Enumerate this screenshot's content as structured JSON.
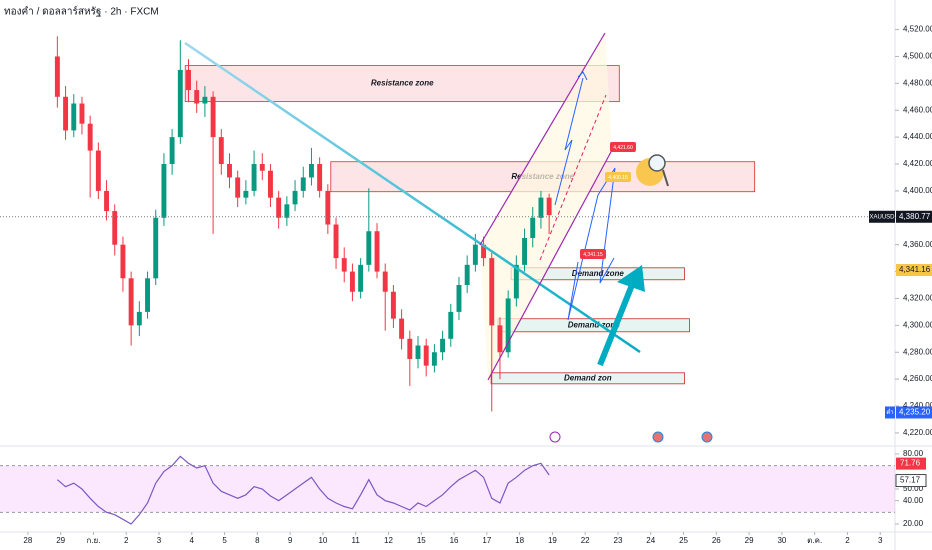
{
  "header": {
    "title": "ทองคำ / ดอลลาร์สหรัฐ · 2h · FXCM"
  },
  "chart_data": [
    {
      "type": "candlestick",
      "symbol": "XAUUSD",
      "colors": {
        "up": "#089981",
        "down": "#f23645"
      },
      "x": [
        0.9,
        1.15,
        1.4,
        1.65,
        1.9,
        2.15,
        2.4,
        2.65,
        2.9,
        3.15,
        3.4,
        3.65,
        3.9,
        4.15,
        4.4,
        4.65,
        4.9,
        5.15,
        5.4,
        5.65,
        5.9,
        6.15,
        6.4,
        6.65,
        6.9,
        7.15,
        7.4,
        7.65,
        7.9,
        8.15,
        8.4,
        8.65,
        8.9,
        9.15,
        9.4,
        9.65,
        9.9,
        10.15,
        10.4,
        10.65,
        10.9,
        11.15,
        11.4,
        11.65,
        11.9,
        12.15,
        12.4,
        12.65,
        12.9,
        13.15,
        13.4,
        13.65,
        13.9,
        14.15,
        14.4,
        14.65,
        14.9,
        15.15,
        15.4,
        15.65,
        15.9
      ],
      "open": [
        4500,
        4470,
        4445,
        4465,
        4450,
        4430,
        4400,
        4385,
        4360,
        4335,
        4300,
        4310,
        4335,
        4380,
        4420,
        4440,
        4490,
        4475,
        4465,
        4470,
        4440,
        4420,
        4410,
        4395,
        4400,
        4420,
        4415,
        4395,
        4380,
        4390,
        4400,
        4410,
        4420,
        4400,
        4375,
        4350,
        4340,
        4325,
        4345,
        4370,
        4340,
        4325,
        4305,
        4290,
        4275,
        4285,
        4270,
        4280,
        4290,
        4310,
        4330,
        4345,
        4360,
        4350,
        4300,
        4280,
        4320,
        4345,
        4365,
        4380,
        4395
      ],
      "high": [
        4515,
        4478,
        4472,
        4470,
        4456,
        4436,
        4408,
        4390,
        4366,
        4340,
        4318,
        4340,
        4386,
        4428,
        4446,
        4512,
        4498,
        4482,
        4478,
        4474,
        4446,
        4428,
        4415,
        4408,
        4430,
        4428,
        4420,
        4400,
        4396,
        4408,
        4418,
        4432,
        4425,
        4405,
        4380,
        4358,
        4346,
        4350,
        4402,
        4376,
        4346,
        4330,
        4312,
        4296,
        4292,
        4290,
        4286,
        4296,
        4316,
        4336,
        4352,
        4368,
        4366,
        4354,
        4306,
        4326,
        4352,
        4372,
        4388,
        4400,
        4398
      ],
      "low": [
        4462,
        4438,
        4440,
        4442,
        4395,
        4394,
        4378,
        4352,
        4325,
        4285,
        4292,
        4305,
        4330,
        4374,
        4412,
        4435,
        4466,
        4458,
        4455,
        4368,
        4412,
        4402,
        4388,
        4390,
        4396,
        4408,
        4388,
        4372,
        4374,
        4385,
        4395,
        4404,
        4395,
        4368,
        4342,
        4332,
        4318,
        4320,
        4340,
        4335,
        4296,
        4298,
        4282,
        4255,
        4268,
        4262,
        4265,
        4274,
        4284,
        4304,
        4324,
        4340,
        4344,
        4236,
        4260,
        4276,
        4314,
        4340,
        4358,
        4372,
        4368
      ],
      "close": [
        4470,
        4445,
        4465,
        4450,
        4430,
        4400,
        4385,
        4360,
        4335,
        4300,
        4310,
        4335,
        4380,
        4420,
        4440,
        4490,
        4475,
        4465,
        4470,
        4440,
        4420,
        4410,
        4395,
        4400,
        4420,
        4415,
        4395,
        4380,
        4390,
        4400,
        4410,
        4420,
        4400,
        4375,
        4350,
        4340,
        4325,
        4345,
        4370,
        4340,
        4325,
        4305,
        4290,
        4275,
        4285,
        4270,
        4280,
        4290,
        4310,
        4330,
        4345,
        4360,
        4350,
        4300,
        4280,
        4320,
        4345,
        4365,
        4380,
        4395,
        4382
      ],
      "xlim": [
        -0.85,
        26.45
      ],
      "xticks": [
        {
          "value": 0,
          "label": "28"
        },
        {
          "value": 1,
          "label": "29"
        },
        {
          "value": 2,
          "label": "ก.ย."
        },
        {
          "value": 3,
          "label": "2"
        },
        {
          "value": 4,
          "label": "3"
        },
        {
          "value": 5,
          "label": "4"
        },
        {
          "value": 6,
          "label": "5"
        },
        {
          "value": 7,
          "label": "8"
        },
        {
          "value": 8,
          "label": "9"
        },
        {
          "value": 9,
          "label": "10"
        },
        {
          "value": 10,
          "label": "11"
        },
        {
          "value": 11,
          "label": "12"
        },
        {
          "value": 12,
          "label": "15"
        },
        {
          "value": 13,
          "label": "16"
        },
        {
          "value": 14,
          "label": "17"
        },
        {
          "value": 15,
          "label": "18"
        },
        {
          "value": 16,
          "label": "19"
        },
        {
          "value": 17,
          "label": "22"
        },
        {
          "value": 18,
          "label": "23"
        },
        {
          "value": 19,
          "label": "24"
        },
        {
          "value": 20,
          "label": "25"
        },
        {
          "value": 21,
          "label": "26"
        },
        {
          "value": 22,
          "label": "29"
        },
        {
          "value": 23,
          "label": "30"
        },
        {
          "value": 24,
          "label": "ต.ค."
        },
        {
          "value": 25,
          "label": "2"
        },
        {
          "value": 26,
          "label": "3"
        }
      ],
      "ylim": [
        4211,
        4542
      ],
      "yticks": [
        {
          "value": 4220,
          "label": "4,220.00"
        },
        {
          "value": 4240,
          "label": "4,240.00"
        },
        {
          "value": 4260,
          "label": "4,260.00"
        },
        {
          "value": 4280,
          "label": "4,280.00"
        },
        {
          "value": 4300,
          "label": "4,300.00"
        },
        {
          "value": 4320,
          "label": "4,320.00"
        },
        {
          "value": 4340,
          "label": "4,340.00"
        },
        {
          "value": 4360,
          "label": "4,360.00"
        },
        {
          "value": 4380,
          "label": "4,380.00"
        },
        {
          "value": 4400,
          "label": "4,400.00"
        },
        {
          "value": 4420,
          "label": "4,420.00"
        },
        {
          "value": 4440,
          "label": "4,440.00"
        },
        {
          "value": 4460,
          "label": "4,460.00"
        },
        {
          "value": 4480,
          "label": "4,480.00"
        },
        {
          "value": 4500,
          "label": "4,500.00"
        },
        {
          "value": 4520,
          "label": "4,520.00"
        }
      ],
      "price_tags": [
        {
          "value": 4380.77,
          "label": "4,380.77",
          "color": "#131722"
        },
        {
          "value": 4341.16,
          "label": "4,341.16",
          "color": "#f7c548"
        },
        {
          "value": 4235.2,
          "label": "4,235.20",
          "color": "#2962ff",
          "prefix": "ต่ำ"
        }
      ],
      "zones": [
        {
          "label": "Resistance zone",
          "x": [
            4.8,
            18.04
          ],
          "price": [
            4466.4,
            4493.2
          ],
          "kind": "resistance"
        },
        {
          "label": "Resistance zone",
          "x": [
            9.24,
            22.17
          ],
          "price": [
            4399.4,
            4421.7
          ],
          "kind": "resistance"
        },
        {
          "label": "Demand zone",
          "x": [
            14.74,
            20.03
          ],
          "price": [
            4333.9,
            4342.8
          ],
          "kind": "demand"
        },
        {
          "label": "Demand zone",
          "x": [
            14.34,
            20.18
          ],
          "price": [
            4295.2,
            4304.9
          ],
          "kind": "demand"
        },
        {
          "label": "Demand zon",
          "x": [
            14.13,
            20.03
          ],
          "price": [
            4256.5,
            4264.7
          ],
          "kind": "demand"
        }
      ],
      "callouts": [
        "4,421.60",
        "4,400.15",
        "4,341.15"
      ]
    },
    {
      "type": "line",
      "name": "RSI",
      "color": "#7e57c2",
      "x": [
        0.9,
        1.15,
        1.4,
        1.65,
        1.9,
        2.15,
        2.4,
        2.65,
        2.9,
        3.15,
        3.4,
        3.65,
        3.9,
        4.15,
        4.4,
        4.65,
        4.9,
        5.15,
        5.4,
        5.65,
        5.9,
        6.15,
        6.4,
        6.65,
        6.9,
        7.15,
        7.4,
        7.65,
        7.9,
        8.15,
        8.4,
        8.65,
        8.9,
        9.15,
        9.4,
        9.65,
        9.9,
        10.15,
        10.4,
        10.65,
        10.9,
        11.15,
        11.4,
        11.65,
        11.9,
        12.15,
        12.4,
        12.65,
        12.9,
        13.15,
        13.4,
        13.65,
        13.9,
        14.15,
        14.4,
        14.65,
        14.9,
        15.15,
        15.4,
        15.65,
        15.9
      ],
      "values": [
        58,
        52,
        55,
        50,
        42,
        35,
        30,
        28,
        24,
        20,
        28,
        38,
        55,
        65,
        70,
        78,
        72,
        68,
        70,
        55,
        48,
        45,
        42,
        45,
        52,
        50,
        44,
        40,
        45,
        50,
        55,
        60,
        50,
        42,
        38,
        35,
        33,
        45,
        58,
        45,
        40,
        38,
        35,
        32,
        38,
        35,
        40,
        45,
        52,
        58,
        62,
        66,
        60,
        42,
        38,
        55,
        60,
        66,
        70,
        72,
        62
      ],
      "xlim": [
        -0.85,
        26.45
      ],
      "ylim": [
        14,
        86
      ],
      "yticks": [
        {
          "value": 80,
          "label": "80.00"
        },
        {
          "value": 50,
          "label": "50.00"
        },
        {
          "value": 40,
          "label": "40.00"
        },
        {
          "value": 20,
          "label": "20.00"
        }
      ],
      "band": [
        30,
        70
      ],
      "value_tags": [
        {
          "value": 71.76,
          "label": "71.76",
          "color": "#f23645"
        },
        {
          "value": 57.17,
          "label": "57.17",
          "color": "#ffffff"
        }
      ]
    }
  ]
}
